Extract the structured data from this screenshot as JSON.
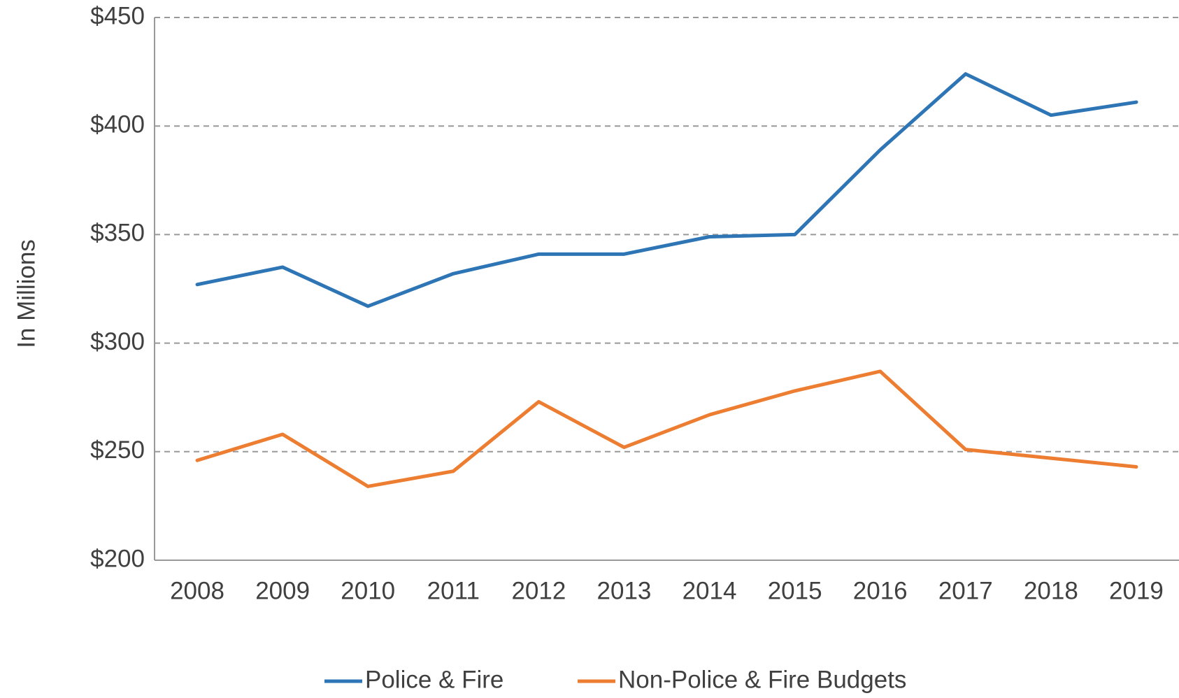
{
  "chart_data": {
    "type": "line",
    "y_label": "In Millions",
    "categories": [
      "2008",
      "2009",
      "2010",
      "2011",
      "2012",
      "2013",
      "2014",
      "2015",
      "2016",
      "2017",
      "2018",
      "2019"
    ],
    "series": [
      {
        "name": "Police & Fire",
        "color": "#2e75b6",
        "values": [
          327,
          335,
          317,
          332,
          341,
          341,
          349,
          350,
          389,
          424,
          405,
          411
        ]
      },
      {
        "name": "Non-Police & Fire Budgets",
        "color": "#ed7d31",
        "values": [
          246,
          258,
          234,
          241,
          273,
          252,
          267,
          278,
          287,
          251,
          247,
          243
        ]
      }
    ],
    "ylim": [
      200,
      450
    ],
    "yticks": [
      {
        "value": 200,
        "label": "$200"
      },
      {
        "value": 250,
        "label": "$250"
      },
      {
        "value": 300,
        "label": "$300"
      },
      {
        "value": 350,
        "label": "$350"
      },
      {
        "value": 400,
        "label": "$400"
      },
      {
        "value": 450,
        "label": "$450"
      }
    ],
    "grid": true,
    "legend": "bottom"
  }
}
